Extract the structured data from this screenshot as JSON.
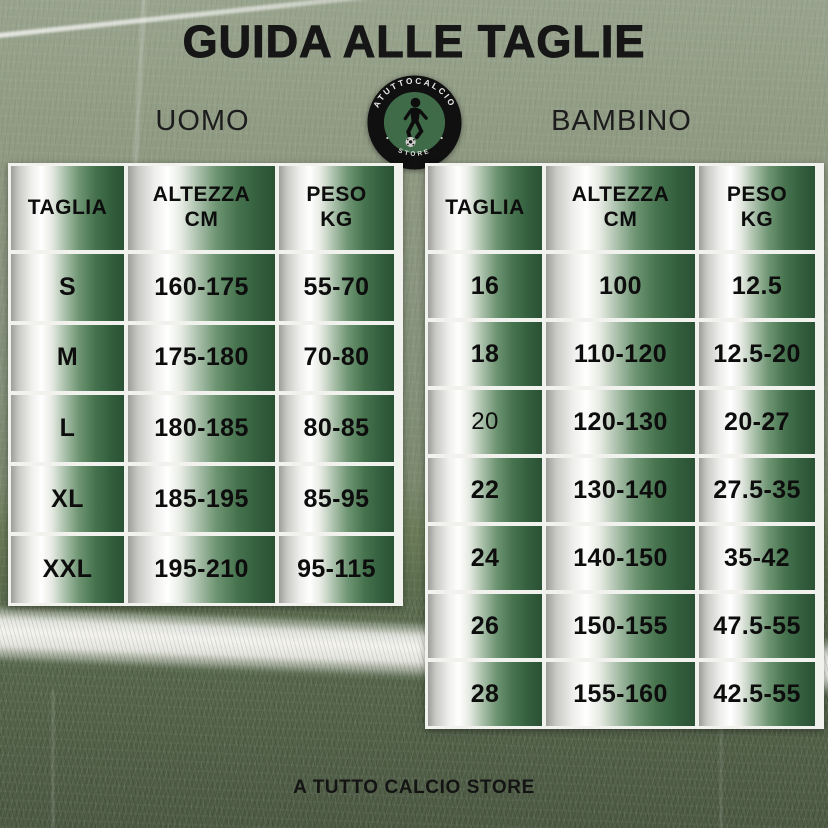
{
  "title": "GUIDA ALLE TAGLIE",
  "footer": "A TUTTO CALCIO STORE",
  "logo": {
    "top_text": "ATUTTOCALCIO",
    "bottom_text": "STORE"
  },
  "colors": {
    "pitch_green_light": "#8a9680",
    "pitch_green_dark": "#4c5a43",
    "cell_green_dark": "#2a5134",
    "cell_silver": "#eeeeec",
    "line_white": "#f5f4f0",
    "text_black": "#161616",
    "logo_ring_black": "#101010",
    "logo_inner_green": "#3f6b48"
  },
  "tables": {
    "uomo": {
      "label": "UOMO",
      "headers": [
        [
          "TAGLIA"
        ],
        [
          "ALTEZZA",
          "CM"
        ],
        [
          "PESO",
          "KG"
        ]
      ],
      "rows": [
        [
          "S",
          "160-175",
          "55-70"
        ],
        [
          "M",
          "175-180",
          "70-80"
        ],
        [
          "L",
          "180-185",
          "80-85"
        ],
        [
          "XL",
          "185-195",
          "85-95"
        ],
        [
          "XXL",
          "195-210",
          "95-115"
        ]
      ]
    },
    "bambino": {
      "label": "BAMBINO",
      "headers": [
        [
          "TAGLIA"
        ],
        [
          "ALTEZZA",
          "CM"
        ],
        [
          "PESO",
          "KG"
        ]
      ],
      "rows": [
        [
          "16",
          "100",
          "12.5"
        ],
        [
          "18",
          "110-120",
          "12.5-20"
        ],
        [
          "20",
          "120-130",
          "20-27"
        ],
        [
          "22",
          "130-140",
          "27.5-35"
        ],
        [
          "24",
          "140-150",
          "35-42"
        ],
        [
          "26",
          "150-155",
          "47.5-55"
        ],
        [
          "28",
          "155-160",
          "42.5-55"
        ]
      ],
      "light_cells": [
        [
          2,
          0
        ]
      ]
    }
  }
}
